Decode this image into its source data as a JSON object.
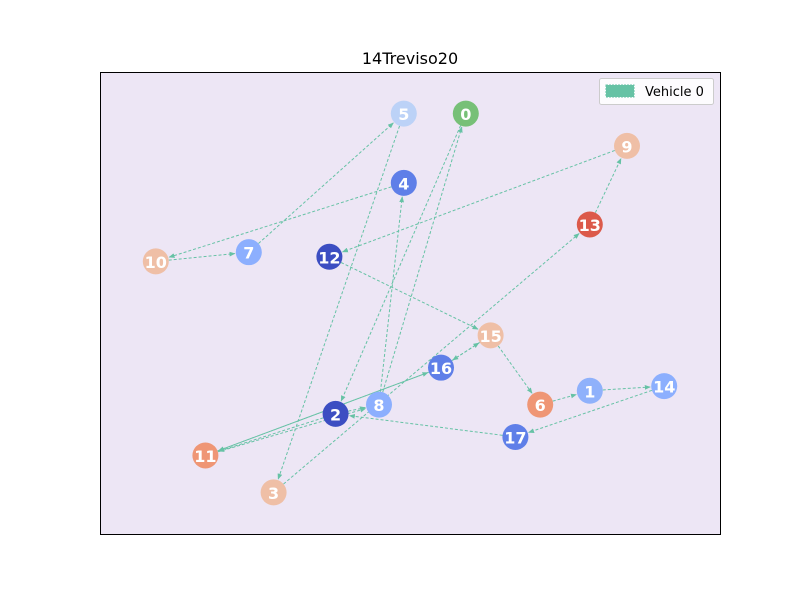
{
  "chart_data": {
    "type": "network-route",
    "title": "14Treviso20",
    "legend": {
      "placement": "top-right",
      "entries": [
        {
          "name": "Vehicle 0",
          "color": "#66c2a5"
        }
      ]
    },
    "plot_background": "#ede6f5",
    "edge_color": "#66c2a5",
    "nodes": [
      {
        "id": "0",
        "x": 0.59,
        "y": 0.91,
        "color": "#77c077"
      },
      {
        "id": "1",
        "x": 0.79,
        "y": 0.31,
        "color": "#8fb1fb"
      },
      {
        "id": "2",
        "x": 0.38,
        "y": 0.26,
        "color": "#3c4ec2"
      },
      {
        "id": "3",
        "x": 0.28,
        "y": 0.09,
        "color": "#efbfa6"
      },
      {
        "id": "4",
        "x": 0.49,
        "y": 0.76,
        "color": "#5f7fe8"
      },
      {
        "id": "5",
        "x": 0.49,
        "y": 0.91,
        "color": "#bcd2f7"
      },
      {
        "id": "6",
        "x": 0.71,
        "y": 0.28,
        "color": "#ef9675"
      },
      {
        "id": "7",
        "x": 0.24,
        "y": 0.61,
        "color": "#8caffe"
      },
      {
        "id": "8",
        "x": 0.45,
        "y": 0.28,
        "color": "#8caffe"
      },
      {
        "id": "9",
        "x": 0.85,
        "y": 0.84,
        "color": "#efbfa6"
      },
      {
        "id": "10",
        "x": 0.09,
        "y": 0.59,
        "color": "#efbfa6"
      },
      {
        "id": "11",
        "x": 0.17,
        "y": 0.17,
        "color": "#ef9675"
      },
      {
        "id": "12",
        "x": 0.37,
        "y": 0.6,
        "color": "#3c4ec2"
      },
      {
        "id": "13",
        "x": 0.79,
        "y": 0.67,
        "color": "#dc5a4a"
      },
      {
        "id": "14",
        "x": 0.91,
        "y": 0.32,
        "color": "#8caffe"
      },
      {
        "id": "15",
        "x": 0.63,
        "y": 0.43,
        "color": "#efbfa6"
      },
      {
        "id": "16",
        "x": 0.55,
        "y": 0.36,
        "color": "#5f7fe8"
      },
      {
        "id": "17",
        "x": 0.67,
        "y": 0.21,
        "color": "#5f7fe8"
      }
    ],
    "route": [
      "0",
      "2",
      "11",
      "16",
      "15",
      "6",
      "1",
      "14",
      "17",
      "2",
      "8",
      "4",
      "10",
      "7",
      "5",
      "3",
      "13",
      "9",
      "12",
      "15",
      "16",
      "11",
      "8",
      "0"
    ]
  }
}
